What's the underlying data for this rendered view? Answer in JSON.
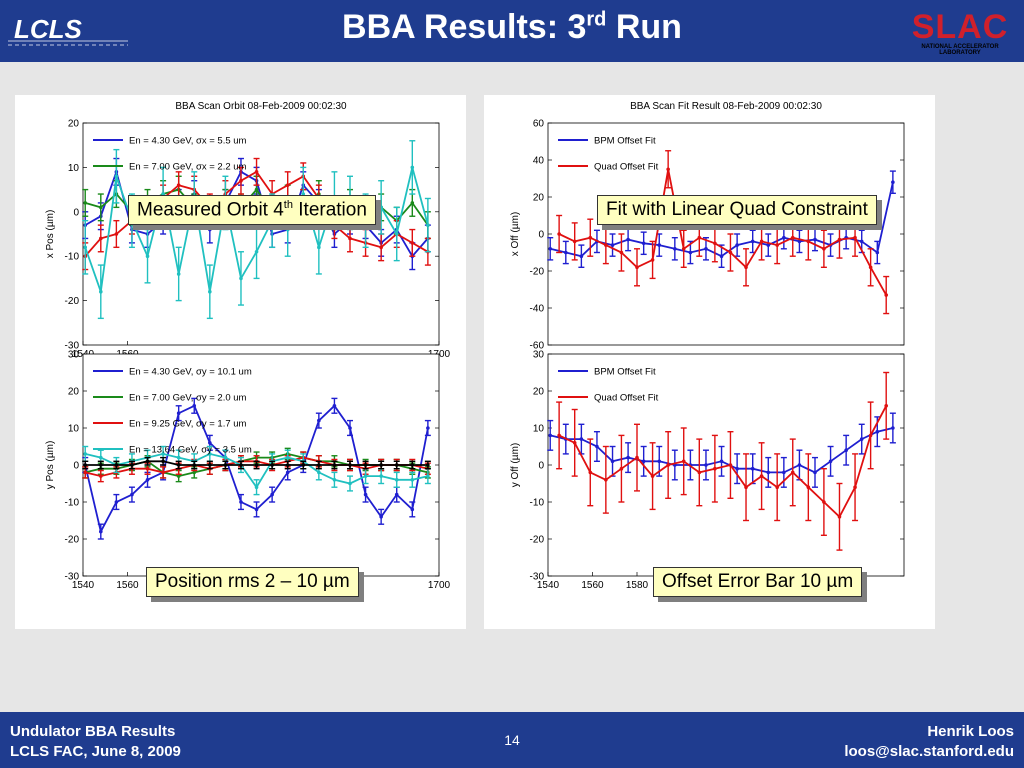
{
  "slide": {
    "title_main": "BBA Results: 3",
    "title_sup": "rd",
    "title_end": " Run",
    "logo_left": "LCLS",
    "logo_right": "SLAC",
    "logo_right_sub": "NATIONAL ACCELERATOR LABORATORY"
  },
  "callouts": {
    "orbit_main": "Measured Orbit 4",
    "orbit_sup": "th",
    "orbit_end": " Iteration",
    "fit": "Fit with Linear Quad Constraint",
    "position": "Position rms 2 – 10 µm",
    "offset": "Offset Error Bar 10 µm"
  },
  "footer": {
    "left1": "Undulator BBA Results",
    "left2": "LCLS FAC, June 8, 2009",
    "page": "14",
    "right1": "Henrik Loos",
    "right2": "loos@slac.stanford.edu"
  },
  "colors": {
    "blue": "#1f1fd0",
    "green": "#1a8a1a",
    "red": "#e01010",
    "cyan": "#20c0c0",
    "black": "#000000",
    "header": "#1f3c8f"
  },
  "chart_data": [
    {
      "id": "orbit-x",
      "type": "line",
      "title": "BBA Scan Orbit 08-Feb-2009 00:02:30",
      "ylabel": "x Pos (µm)",
      "ylim": [
        -30,
        20
      ],
      "yticks": [
        20,
        10,
        0,
        -10,
        -20,
        -30
      ],
      "xlim": [
        1540,
        1700
      ],
      "xticks": [
        1540,
        1560,
        1700
      ],
      "legend": [
        "En =   4.30 GeV, σx =    5.5 um",
        "En =   7.00 GeV, σx =    2.2 um"
      ],
      "series": [
        {
          "name": "4.30 GeV",
          "color": "#1f1fd0",
          "err": 3,
          "x": [
            1541,
            1548,
            1555,
            1562,
            1569,
            1576,
            1583,
            1590,
            1597,
            1604,
            1611,
            1618,
            1625,
            1632,
            1639,
            1646,
            1653,
            1660,
            1667,
            1674,
            1681,
            1688,
            1695
          ],
          "y": [
            -3,
            -1,
            9,
            -4,
            -5,
            -2,
            2,
            4,
            -4,
            2,
            9,
            7,
            -5,
            -4,
            6,
            2,
            -5,
            -2,
            -3,
            -7,
            -4,
            -10,
            -6
          ]
        },
        {
          "name": "7.00 GeV",
          "color": "#1a8a1a",
          "err": 3,
          "x": [
            1541,
            1548,
            1555,
            1562,
            1569,
            1576,
            1583,
            1590,
            1597,
            1604,
            1611,
            1618,
            1625,
            1632,
            1639,
            1646,
            1653,
            1660,
            1667,
            1674,
            1681,
            1688,
            1695
          ],
          "y": [
            2,
            1,
            4,
            0,
            2,
            4,
            5,
            1,
            0,
            2,
            1,
            5,
            0,
            3,
            2,
            4,
            -1,
            2,
            0,
            1,
            -2,
            2,
            -3
          ]
        },
        {
          "name": "",
          "color": "#e01010",
          "err": 3,
          "x": [
            1541,
            1548,
            1555,
            1562,
            1569,
            1576,
            1583,
            1590,
            1597,
            1604,
            1611,
            1618,
            1625,
            1632,
            1639,
            1646,
            1653,
            1660,
            1667,
            1674,
            1681,
            1688,
            1695
          ],
          "y": [
            -10,
            -6,
            -5,
            -2,
            0,
            3,
            6,
            5,
            1,
            4,
            7,
            9,
            4,
            6,
            8,
            3,
            -3,
            -6,
            -7,
            -8,
            -5,
            -7,
            -9
          ]
        },
        {
          "name": "",
          "color": "#20c0c0",
          "err": 6,
          "x": [
            1541,
            1548,
            1555,
            1562,
            1569,
            1576,
            1583,
            1590,
            1597,
            1604,
            1611,
            1618,
            1625,
            1632,
            1639,
            1646,
            1653,
            1660,
            1667,
            1674,
            1681,
            1688,
            1695
          ],
          "y": [
            -8,
            -18,
            8,
            -2,
            -10,
            4,
            -14,
            3,
            -18,
            2,
            -15,
            -9,
            -2,
            -4,
            4,
            -8,
            3,
            2,
            -2,
            1,
            -5,
            10,
            -3
          ]
        }
      ]
    },
    {
      "id": "orbit-y",
      "type": "line",
      "ylabel": "y Pos (µm)",
      "ylim": [
        -30,
        30
      ],
      "yticks": [
        30,
        20,
        10,
        0,
        -10,
        -20,
        -30
      ],
      "xlim": [
        1540,
        1700
      ],
      "xticks": [
        1540,
        1560,
        1700
      ],
      "legend": [
        "En =   4.30 GeV, σy =   10.1 um",
        "En =   7.00 GeV, σy =    2.0 um",
        "En =   9.25 GeV, σy =    1.7 um",
        "En =  13.64 GeV, σy =    3.5 um"
      ],
      "series": [
        {
          "name": "4.30 GeV",
          "color": "#1f1fd0",
          "err": 2,
          "x": [
            1541,
            1548,
            1555,
            1562,
            1569,
            1576,
            1583,
            1590,
            1597,
            1604,
            1611,
            1618,
            1625,
            1632,
            1639,
            1646,
            1653,
            1660,
            1667,
            1674,
            1681,
            1688,
            1695
          ],
          "y": [
            0,
            -18,
            -10,
            -8,
            -4,
            -2,
            14,
            16,
            6,
            2,
            -10,
            -12,
            -8,
            -2,
            0,
            12,
            16,
            10,
            -8,
            -14,
            -8,
            -12,
            10
          ]
        },
        {
          "name": "7.00 GeV",
          "color": "#1a8a1a",
          "err": 1.5,
          "x": [
            1541,
            1548,
            1555,
            1562,
            1569,
            1576,
            1583,
            1590,
            1597,
            1604,
            1611,
            1618,
            1625,
            1632,
            1639,
            1646,
            1653,
            1660,
            1667,
            1674,
            1681,
            1688,
            1695
          ],
          "y": [
            -2,
            -1,
            -1,
            0,
            1,
            -2,
            -3,
            -2,
            -1,
            0,
            1,
            2,
            2,
            3,
            2,
            1,
            1,
            0,
            0,
            0,
            0,
            -1,
            -2
          ]
        },
        {
          "name": "9.25 GeV",
          "color": "#e01010",
          "err": 1.5,
          "x": [
            1541,
            1548,
            1555,
            1562,
            1569,
            1576,
            1583,
            1590,
            1597,
            1604,
            1611,
            1618,
            1625,
            1632,
            1639,
            1646,
            1653,
            1660,
            1667,
            1674,
            1681,
            1688,
            1695
          ],
          "y": [
            -2,
            -3,
            -2,
            -1,
            -1,
            -2,
            -1,
            0,
            -1,
            0,
            1,
            1,
            0,
            1,
            2,
            1,
            0,
            0,
            -1,
            0,
            0,
            0,
            -1
          ]
        },
        {
          "name": "13.64 GeV",
          "color": "#20c0c0",
          "err": 2,
          "x": [
            1541,
            1548,
            1555,
            1562,
            1569,
            1576,
            1583,
            1590,
            1597,
            1604,
            1611,
            1618,
            1625,
            1632,
            1639,
            1646,
            1653,
            1660,
            1667,
            1674,
            1681,
            1688,
            1695
          ],
          "y": [
            3,
            2,
            0,
            1,
            2,
            3,
            2,
            1,
            3,
            2,
            0,
            -6,
            1,
            2,
            1,
            -2,
            -4,
            -5,
            -3,
            -3,
            -4,
            -4,
            -3
          ]
        },
        {
          "name": "",
          "color": "#000000",
          "err": 1,
          "x": [
            1541,
            1548,
            1555,
            1562,
            1569,
            1576,
            1583,
            1590,
            1597,
            1604,
            1611,
            1618,
            1625,
            1632,
            1639,
            1646,
            1653,
            1660,
            1667,
            1674,
            1681,
            1688,
            1695
          ],
          "y": [
            0,
            0,
            0,
            0,
            1,
            1,
            0,
            0,
            0,
            0,
            0,
            0,
            0,
            0,
            0,
            0,
            0,
            0,
            0,
            0,
            0,
            0,
            0
          ]
        }
      ]
    },
    {
      "id": "fit-x",
      "type": "line",
      "title": "BBA Scan Fit Result 08-Feb-2009 00:02:30",
      "ylabel": "x Off (µm)",
      "ylim": [
        -60,
        60
      ],
      "yticks": [
        60,
        40,
        20,
        0,
        -20,
        -40,
        -60
      ],
      "xlim": [
        1540,
        1700
      ],
      "xticks": [],
      "legend": [
        "BPM Offset Fit",
        "Quad Offset Fit"
      ],
      "series": [
        {
          "name": "BPM Offset Fit",
          "color": "#1f1fd0",
          "err": 6,
          "x": [
            1541,
            1548,
            1555,
            1562,
            1569,
            1576,
            1583,
            1590,
            1597,
            1604,
            1611,
            1618,
            1625,
            1632,
            1639,
            1646,
            1653,
            1660,
            1667,
            1674,
            1681,
            1688,
            1695
          ],
          "y": [
            -8,
            -10,
            -12,
            -4,
            -6,
            -3,
            -5,
            -6,
            -8,
            -10,
            -8,
            -12,
            -6,
            -4,
            -6,
            -2,
            -4,
            -3,
            -6,
            -2,
            -4,
            -10,
            28
          ]
        },
        {
          "name": "Quad Offset Fit",
          "color": "#e01010",
          "err": 10,
          "x": [
            1545,
            1552,
            1559,
            1566,
            1573,
            1580,
            1587,
            1594,
            1601,
            1608,
            1615,
            1622,
            1629,
            1636,
            1643,
            1650,
            1657,
            1664,
            1671,
            1678,
            1685,
            1692
          ],
          "y": [
            0,
            -4,
            -2,
            -6,
            -10,
            -18,
            -14,
            35,
            -8,
            -2,
            -5,
            -10,
            -18,
            -4,
            -6,
            -2,
            -4,
            -8,
            -3,
            -2,
            -18,
            -33
          ]
        }
      ]
    },
    {
      "id": "fit-y",
      "type": "line",
      "ylabel": "y Off (µm)",
      "ylim": [
        -30,
        30
      ],
      "yticks": [
        30,
        20,
        10,
        0,
        -10,
        -20,
        -30
      ],
      "xlim": [
        1540,
        1700
      ],
      "xticks": [
        1540,
        1560,
        1580
      ],
      "legend": [
        "BPM Offset Fit",
        "Quad Offset Fit"
      ],
      "series": [
        {
          "name": "BPM Offset Fit",
          "color": "#1f1fd0",
          "err": 4,
          "x": [
            1541,
            1548,
            1555,
            1562,
            1569,
            1576,
            1583,
            1590,
            1597,
            1604,
            1611,
            1618,
            1625,
            1632,
            1639,
            1646,
            1653,
            1660,
            1667,
            1674,
            1681,
            1688,
            1695
          ],
          "y": [
            8,
            7,
            7,
            5,
            1,
            2,
            1,
            1,
            0,
            0,
            0,
            1,
            -1,
            -1,
            -2,
            -2,
            0,
            -2,
            1,
            4,
            7,
            9,
            10
          ]
        },
        {
          "name": "Quad Offset Fit",
          "color": "#e01010",
          "err": 9,
          "x": [
            1545,
            1552,
            1559,
            1566,
            1573,
            1580,
            1587,
            1594,
            1601,
            1608,
            1615,
            1622,
            1629,
            1636,
            1643,
            1650,
            1657,
            1664,
            1671,
            1678,
            1685,
            1692
          ],
          "y": [
            8,
            6,
            -2,
            -4,
            -1,
            2,
            -3,
            0,
            1,
            -2,
            -1,
            0,
            -6,
            -3,
            -6,
            -2,
            -6,
            -10,
            -14,
            -6,
            8,
            16
          ]
        }
      ]
    }
  ]
}
